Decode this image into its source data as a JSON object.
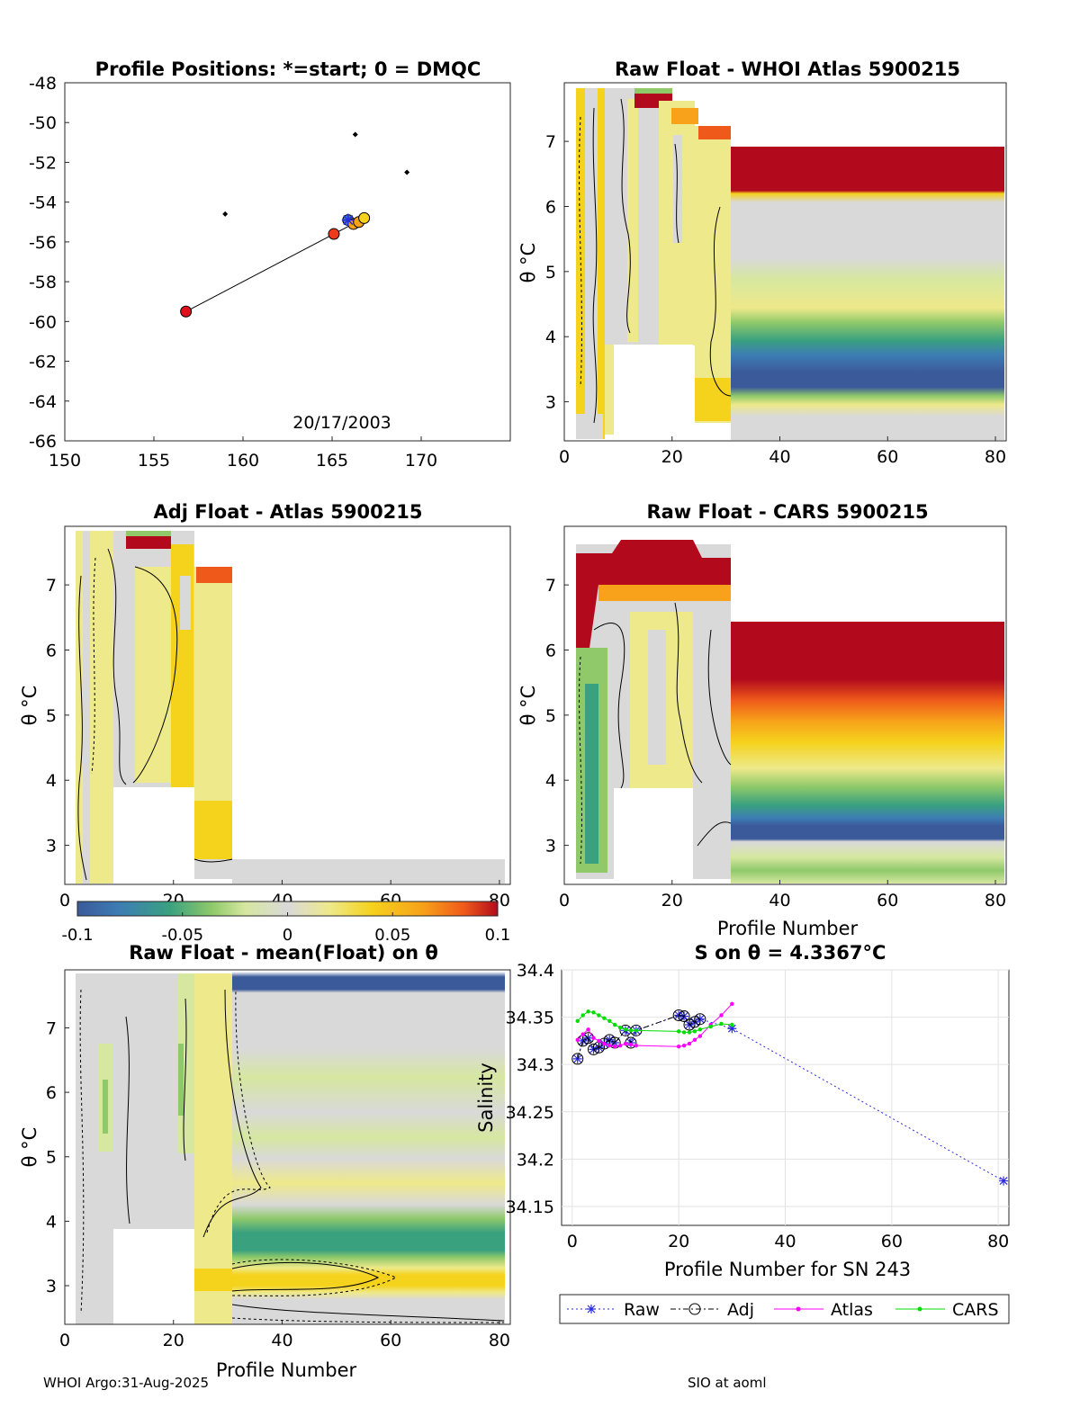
{
  "figure": {
    "footer_left": "WHOI Argo:31-Aug-2025",
    "footer_right": "SIO at aoml"
  },
  "colors": {
    "colormap": [
      "#3b5a9a",
      "#3d7db4",
      "#3aa17f",
      "#8fc96a",
      "#d6e7a0",
      "#d9d9d9",
      "#eee98a",
      "#f5d21c",
      "#f7a21a",
      "#ef5a1a",
      "#b20a1c"
    ]
  },
  "chart_data": [
    {
      "id": "positions",
      "type": "scatter",
      "title": "Profile Positions: *=start; 0 = DMQC",
      "xlim": [
        150,
        175
      ],
      "ylim": [
        -66,
        -48
      ],
      "xticks": [
        "150",
        "155",
        "160",
        "165",
        "170"
      ],
      "yticks": [
        "-48",
        "-50",
        "-52",
        "-54",
        "-56",
        "-58",
        "-60",
        "-62",
        "-64",
        "-66"
      ],
      "annotation": "20/17/2003",
      "track": [
        [
          165.9,
          -54.9
        ],
        [
          166.2,
          -55.1
        ],
        [
          166.5,
          -55.0
        ],
        [
          166.8,
          -54.8
        ],
        [
          165.1,
          -55.6
        ],
        [
          156.8,
          -59.5
        ]
      ],
      "start": [
        165.9,
        -54.9
      ],
      "islands": [
        [
          166.3,
          -50.6
        ],
        [
          159.0,
          -54.6
        ],
        [
          169.2,
          -52.5
        ]
      ]
    },
    {
      "id": "raw_atlas",
      "type": "heatmap",
      "title": "Raw Float - WHOI Atlas  5900215",
      "ylabel": "θ °C",
      "xlabel": "",
      "xlim": [
        0,
        82
      ],
      "ylim": [
        2.4,
        7.9
      ],
      "xticks": [
        "0",
        "20",
        "40",
        "60",
        "80"
      ],
      "yticks": [
        "3",
        "4",
        "5",
        "6",
        "7"
      ]
    },
    {
      "id": "adj_atlas",
      "type": "heatmap",
      "title": "Adj Float - Atlas  5900215",
      "ylabel": "θ °C",
      "xlabel": "",
      "xlim": [
        0,
        82
      ],
      "ylim": [
        2.4,
        7.9
      ],
      "xticks": [
        "0",
        "20",
        "40",
        "60",
        "80"
      ],
      "yticks": [
        "3",
        "4",
        "5",
        "6",
        "7"
      ]
    },
    {
      "id": "raw_cars",
      "type": "heatmap",
      "title": "Raw Float - CARS  5900215",
      "ylabel": "θ °C",
      "xlabel": "Profile Number",
      "xlim": [
        0,
        82
      ],
      "ylim": [
        2.4,
        7.9
      ],
      "xticks": [
        "0",
        "20",
        "40",
        "60",
        "80"
      ],
      "yticks": [
        "3",
        "4",
        "5",
        "6",
        "7"
      ]
    },
    {
      "id": "colorbar",
      "type": "heatmap",
      "range": [
        -0.1,
        0.1
      ],
      "ticks": [
        "-0.1",
        "-0.05",
        "0",
        "0.05",
        "0.1"
      ]
    },
    {
      "id": "raw_mean",
      "type": "heatmap",
      "title": "Raw Float - mean(Float) on θ",
      "ylabel": "θ °C",
      "xlabel": "Profile Number",
      "xlim": [
        0,
        82
      ],
      "ylim": [
        2.4,
        7.9
      ],
      "xticks": [
        "0",
        "20",
        "40",
        "60",
        "80"
      ],
      "yticks": [
        "3",
        "4",
        "5",
        "6",
        "7"
      ]
    },
    {
      "id": "salinity",
      "type": "line",
      "title": "S on θ = 4.3367°C",
      "ylabel": "Salinity",
      "xlabel": "Profile Number for SN 243",
      "xlim": [
        -2,
        82
      ],
      "ylim": [
        34.13,
        34.4
      ],
      "xticks": [
        "0",
        "20",
        "40",
        "60",
        "80"
      ],
      "yticks": [
        "34.4",
        "34.35",
        "34.3",
        "34.25",
        "34.2",
        "34.15"
      ],
      "legend": [
        "Raw",
        "Adj",
        "Atlas",
        "CARS"
      ],
      "legend_position": "bottom",
      "series": [
        {
          "name": "Raw",
          "color": "#2a2ae0",
          "x": [
            1,
            2,
            3,
            4,
            5,
            6,
            7,
            8,
            10,
            11,
            12,
            20,
            21,
            22,
            23,
            24,
            30,
            81
          ],
          "y": [
            34.306,
            34.325,
            34.328,
            34.316,
            34.318,
            34.322,
            34.326,
            34.323,
            34.336,
            34.323,
            34.336,
            34.352,
            34.351,
            34.342,
            34.345,
            34.348,
            34.338,
            34.177
          ]
        },
        {
          "name": "Adj",
          "color": "#000000",
          "x": [
            1,
            2,
            3,
            4,
            5,
            6,
            7,
            8,
            10,
            11,
            12,
            20,
            21,
            22,
            23,
            24
          ],
          "y": [
            34.306,
            34.325,
            34.328,
            34.316,
            34.318,
            34.322,
            34.326,
            34.323,
            34.336,
            34.323,
            34.336,
            34.352,
            34.351,
            34.342,
            34.345,
            34.348
          ]
        },
        {
          "name": "Atlas",
          "color": "#ff00ff",
          "x": [
            1,
            2,
            3,
            4,
            5,
            6,
            7,
            8,
            9,
            10,
            11,
            12,
            20,
            21,
            22,
            23,
            24,
            26,
            28,
            30
          ],
          "y": [
            34.326,
            34.332,
            34.337,
            34.328,
            34.325,
            34.322,
            34.32,
            34.319,
            34.32,
            34.322,
            34.321,
            34.32,
            34.319,
            34.32,
            34.322,
            34.326,
            34.33,
            34.342,
            34.352,
            34.364
          ]
        },
        {
          "name": "CARS",
          "color": "#00dd00",
          "x": [
            1,
            2,
            3,
            4,
            5,
            6,
            7,
            8,
            9,
            10,
            11,
            12,
            20,
            21,
            22,
            23,
            24,
            26,
            28,
            30
          ],
          "y": [
            34.346,
            34.352,
            34.356,
            34.355,
            34.352,
            34.349,
            34.346,
            34.342,
            34.339,
            34.337,
            34.336,
            34.336,
            34.335,
            34.334,
            34.334,
            34.335,
            34.337,
            34.34,
            34.343,
            34.342
          ]
        }
      ]
    }
  ]
}
